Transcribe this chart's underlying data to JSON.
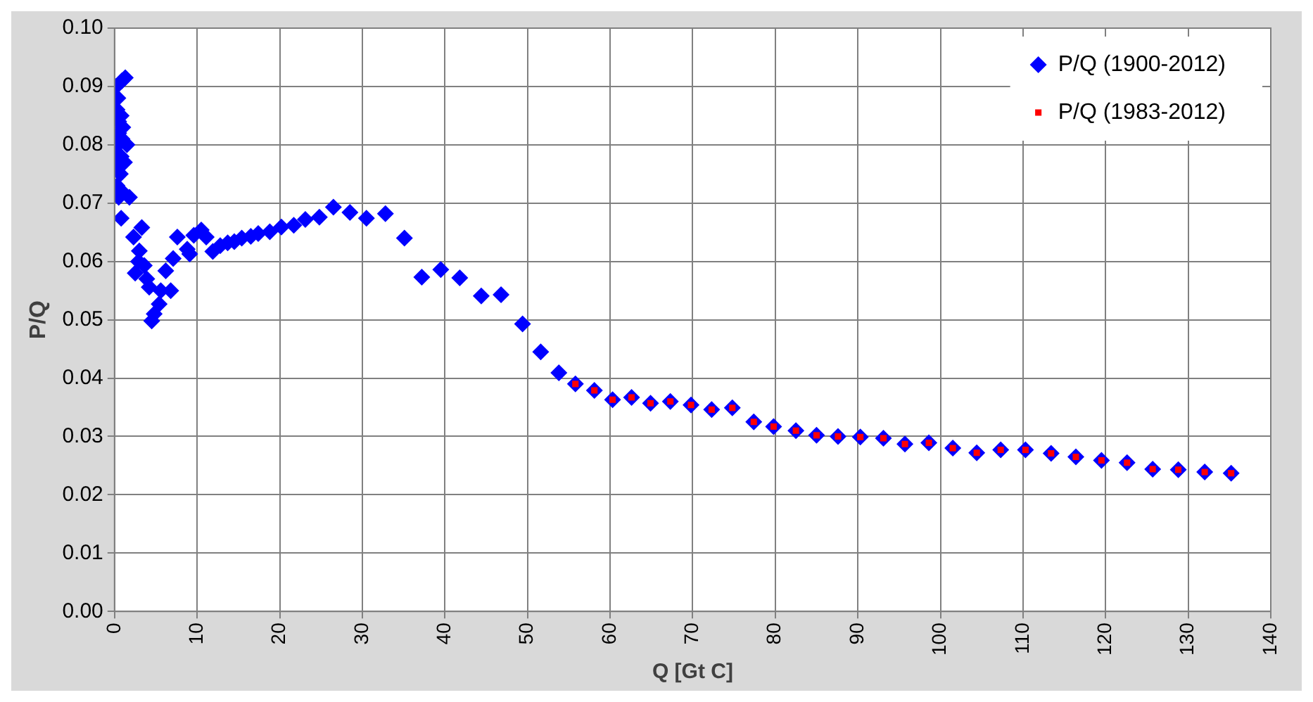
{
  "chart_data": {
    "type": "scatter",
    "xlabel": "Q [Gt C]",
    "ylabel": "P/Q",
    "xlim": [
      0,
      140
    ],
    "xticks": [
      0,
      10,
      20,
      30,
      40,
      50,
      60,
      70,
      80,
      90,
      100,
      110,
      120,
      130,
      140
    ],
    "ylim": [
      0,
      0.1
    ],
    "yticks": [
      {
        "value": 0,
        "label": "0.00"
      },
      {
        "value": 0.01,
        "label": "0.01"
      },
      {
        "value": 0.02,
        "label": "0.02"
      },
      {
        "value": 0.03,
        "label": "0.03"
      },
      {
        "value": 0.04,
        "label": "0.04"
      },
      {
        "value": 0.05,
        "label": "0.05"
      },
      {
        "value": 0.06,
        "label": "0.06"
      },
      {
        "value": 0.07,
        "label": "0.07"
      },
      {
        "value": 0.08,
        "label": "0.08"
      },
      {
        "value": 0.09,
        "label": "0.09"
      },
      {
        "value": 0.1,
        "label": "0.10"
      }
    ],
    "grid": true,
    "legend": "top right",
    "series": [
      {
        "name": "P/Q (1900-2012)",
        "color": "#0000ff",
        "marker": "diamond",
        "x": [
          0.2,
          0.4,
          0.9,
          1.3,
          0.3,
          0.5,
          0.8,
          0.5,
          1.0,
          0.4,
          0.9,
          1.5,
          0.3,
          0.8,
          1.2,
          0.4,
          0.7,
          0.3,
          0.9,
          0.5,
          1.8,
          0.8,
          2.3,
          3.3,
          3.0,
          2.9,
          2.5,
          3.6,
          3.9,
          4.2,
          5.6,
          6.8,
          5.4,
          4.8,
          4.5,
          6.2,
          7.1,
          7.6,
          8.8,
          9.1,
          9.6,
          10.5,
          11.1,
          11.9,
          12.8,
          13.7,
          14.5,
          15.4,
          16.5,
          17.4,
          18.8,
          20.2,
          21.7,
          23.1,
          24.8,
          26.5,
          28.5,
          30.5,
          32.8,
          35.1,
          37.2,
          39.5,
          41.8,
          44.4,
          46.8,
          49.4,
          51.6,
          53.8,
          55.8,
          58.1,
          60.3,
          62.6,
          64.9,
          67.3,
          69.8,
          72.3,
          74.8,
          77.4,
          79.8,
          82.5,
          85.0,
          87.6,
          90.3,
          93.1,
          95.7,
          98.6,
          101.5,
          104.4,
          107.3,
          110.3,
          113.4,
          116.4,
          119.5,
          122.6,
          125.7,
          128.8,
          132.0,
          135.2
        ],
        "values": [
          0.09,
          0.088,
          0.091,
          0.0915,
          0.086,
          0.084,
          0.085,
          0.082,
          0.083,
          0.08,
          0.081,
          0.08,
          0.078,
          0.078,
          0.077,
          0.076,
          0.075,
          0.073,
          0.072,
          0.071,
          0.071,
          0.0674,
          0.0642,
          0.0658,
          0.0618,
          0.06,
          0.058,
          0.0593,
          0.057,
          0.0556,
          0.055,
          0.055,
          0.0527,
          0.051,
          0.0498,
          0.0584,
          0.0605,
          0.0642,
          0.0621,
          0.0613,
          0.0645,
          0.0654,
          0.0642,
          0.0617,
          0.0627,
          0.0632,
          0.0634,
          0.064,
          0.0643,
          0.0648,
          0.0651,
          0.0659,
          0.0662,
          0.0672,
          0.0676,
          0.0693,
          0.0684,
          0.0674,
          0.0682,
          0.064,
          0.0573,
          0.0586,
          0.0572,
          0.0541,
          0.0543,
          0.0493,
          0.0445,
          0.0409,
          0.039,
          0.0379,
          0.0363,
          0.0367,
          0.0357,
          0.036,
          0.0354,
          0.0346,
          0.0349,
          0.0325,
          0.0317,
          0.031,
          0.0302,
          0.03,
          0.0299,
          0.0297,
          0.0287,
          0.0289,
          0.028,
          0.0272,
          0.0277,
          0.0277,
          0.0271,
          0.0265,
          0.0259,
          0.0255,
          0.0244,
          0.0243,
          0.0239,
          0.0237
        ]
      },
      {
        "name": "P/Q (1983-2012)",
        "color": "#ff0000",
        "marker": "square",
        "x": [
          55.8,
          58.1,
          60.3,
          62.6,
          64.9,
          67.3,
          69.8,
          72.3,
          74.8,
          77.4,
          79.8,
          82.5,
          85.0,
          87.6,
          90.3,
          93.1,
          95.7,
          98.6,
          101.5,
          104.4,
          107.3,
          110.3,
          113.4,
          116.4,
          119.5,
          122.6,
          125.7,
          128.8,
          132.0,
          135.2
        ],
        "values": [
          0.039,
          0.0379,
          0.0363,
          0.0367,
          0.0357,
          0.036,
          0.0354,
          0.0346,
          0.0349,
          0.0325,
          0.0317,
          0.031,
          0.0302,
          0.03,
          0.0299,
          0.0297,
          0.0287,
          0.0289,
          0.028,
          0.0272,
          0.0277,
          0.0277,
          0.0271,
          0.0265,
          0.0259,
          0.0255,
          0.0244,
          0.0243,
          0.0239,
          0.0237
        ]
      }
    ]
  }
}
